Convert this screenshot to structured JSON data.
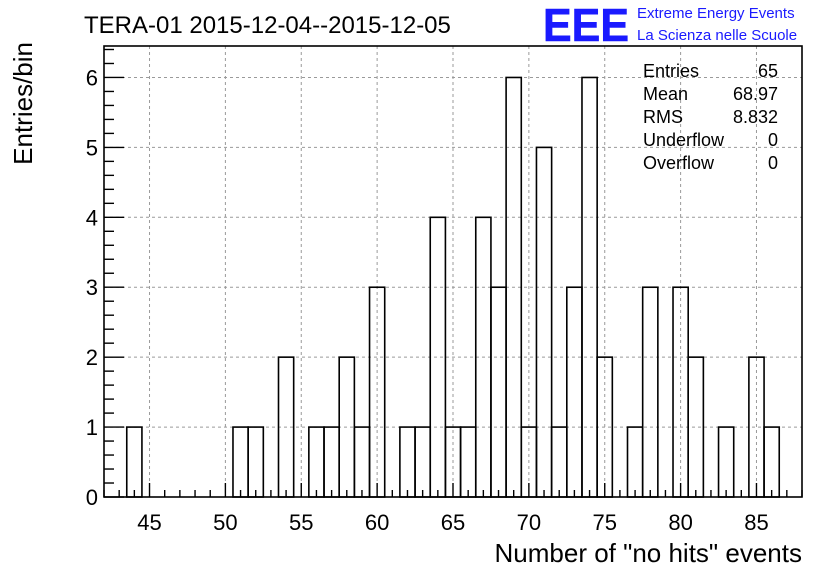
{
  "chart_data": {
    "type": "bar",
    "title": "TERA-01 2015-12-04--2015-12-05",
    "xlabel": "Number of \"no hits\" events",
    "ylabel": "Entries/bin",
    "xlim": [
      42,
      88
    ],
    "ylim": [
      0,
      6.45
    ],
    "x_ticks": [
      "45",
      "50",
      "55",
      "60",
      "65",
      "70",
      "75",
      "80",
      "85"
    ],
    "y_ticks": [
      "0",
      "1",
      "2",
      "3",
      "4",
      "5",
      "6"
    ],
    "grid": true,
    "bin_width": 1,
    "bins": [
      {
        "x": 44,
        "y": 1
      },
      {
        "x": 51,
        "y": 1
      },
      {
        "x": 52,
        "y": 1
      },
      {
        "x": 54,
        "y": 2
      },
      {
        "x": 56,
        "y": 1
      },
      {
        "x": 57,
        "y": 1
      },
      {
        "x": 58,
        "y": 2
      },
      {
        "x": 59,
        "y": 1
      },
      {
        "x": 60,
        "y": 3
      },
      {
        "x": 62,
        "y": 1
      },
      {
        "x": 63,
        "y": 1
      },
      {
        "x": 64,
        "y": 4
      },
      {
        "x": 65,
        "y": 1
      },
      {
        "x": 66,
        "y": 1
      },
      {
        "x": 67,
        "y": 4
      },
      {
        "x": 68,
        "y": 3
      },
      {
        "x": 69,
        "y": 6
      },
      {
        "x": 70,
        "y": 1
      },
      {
        "x": 71,
        "y": 5
      },
      {
        "x": 72,
        "y": 1
      },
      {
        "x": 73,
        "y": 3
      },
      {
        "x": 74,
        "y": 6
      },
      {
        "x": 75,
        "y": 2
      },
      {
        "x": 77,
        "y": 1
      },
      {
        "x": 78,
        "y": 3
      },
      {
        "x": 80,
        "y": 3
      },
      {
        "x": 81,
        "y": 2
      },
      {
        "x": 83,
        "y": 1
      },
      {
        "x": 85,
        "y": 2
      },
      {
        "x": 86,
        "y": 1
      }
    ],
    "stats": [
      {
        "label": "Entries",
        "value": "65"
      },
      {
        "label": "Mean",
        "value": "68.97"
      },
      {
        "label": "RMS",
        "value": "8.832"
      },
      {
        "label": "Underflow",
        "value": "0"
      },
      {
        "label": "Overflow",
        "value": "0"
      }
    ],
    "legend_position": "top-right"
  },
  "logo": {
    "text": "EEE",
    "line1": "Extreme Energy Events",
    "line2": "La Scienza nelle Scuole",
    "color": "#1a1aff"
  }
}
